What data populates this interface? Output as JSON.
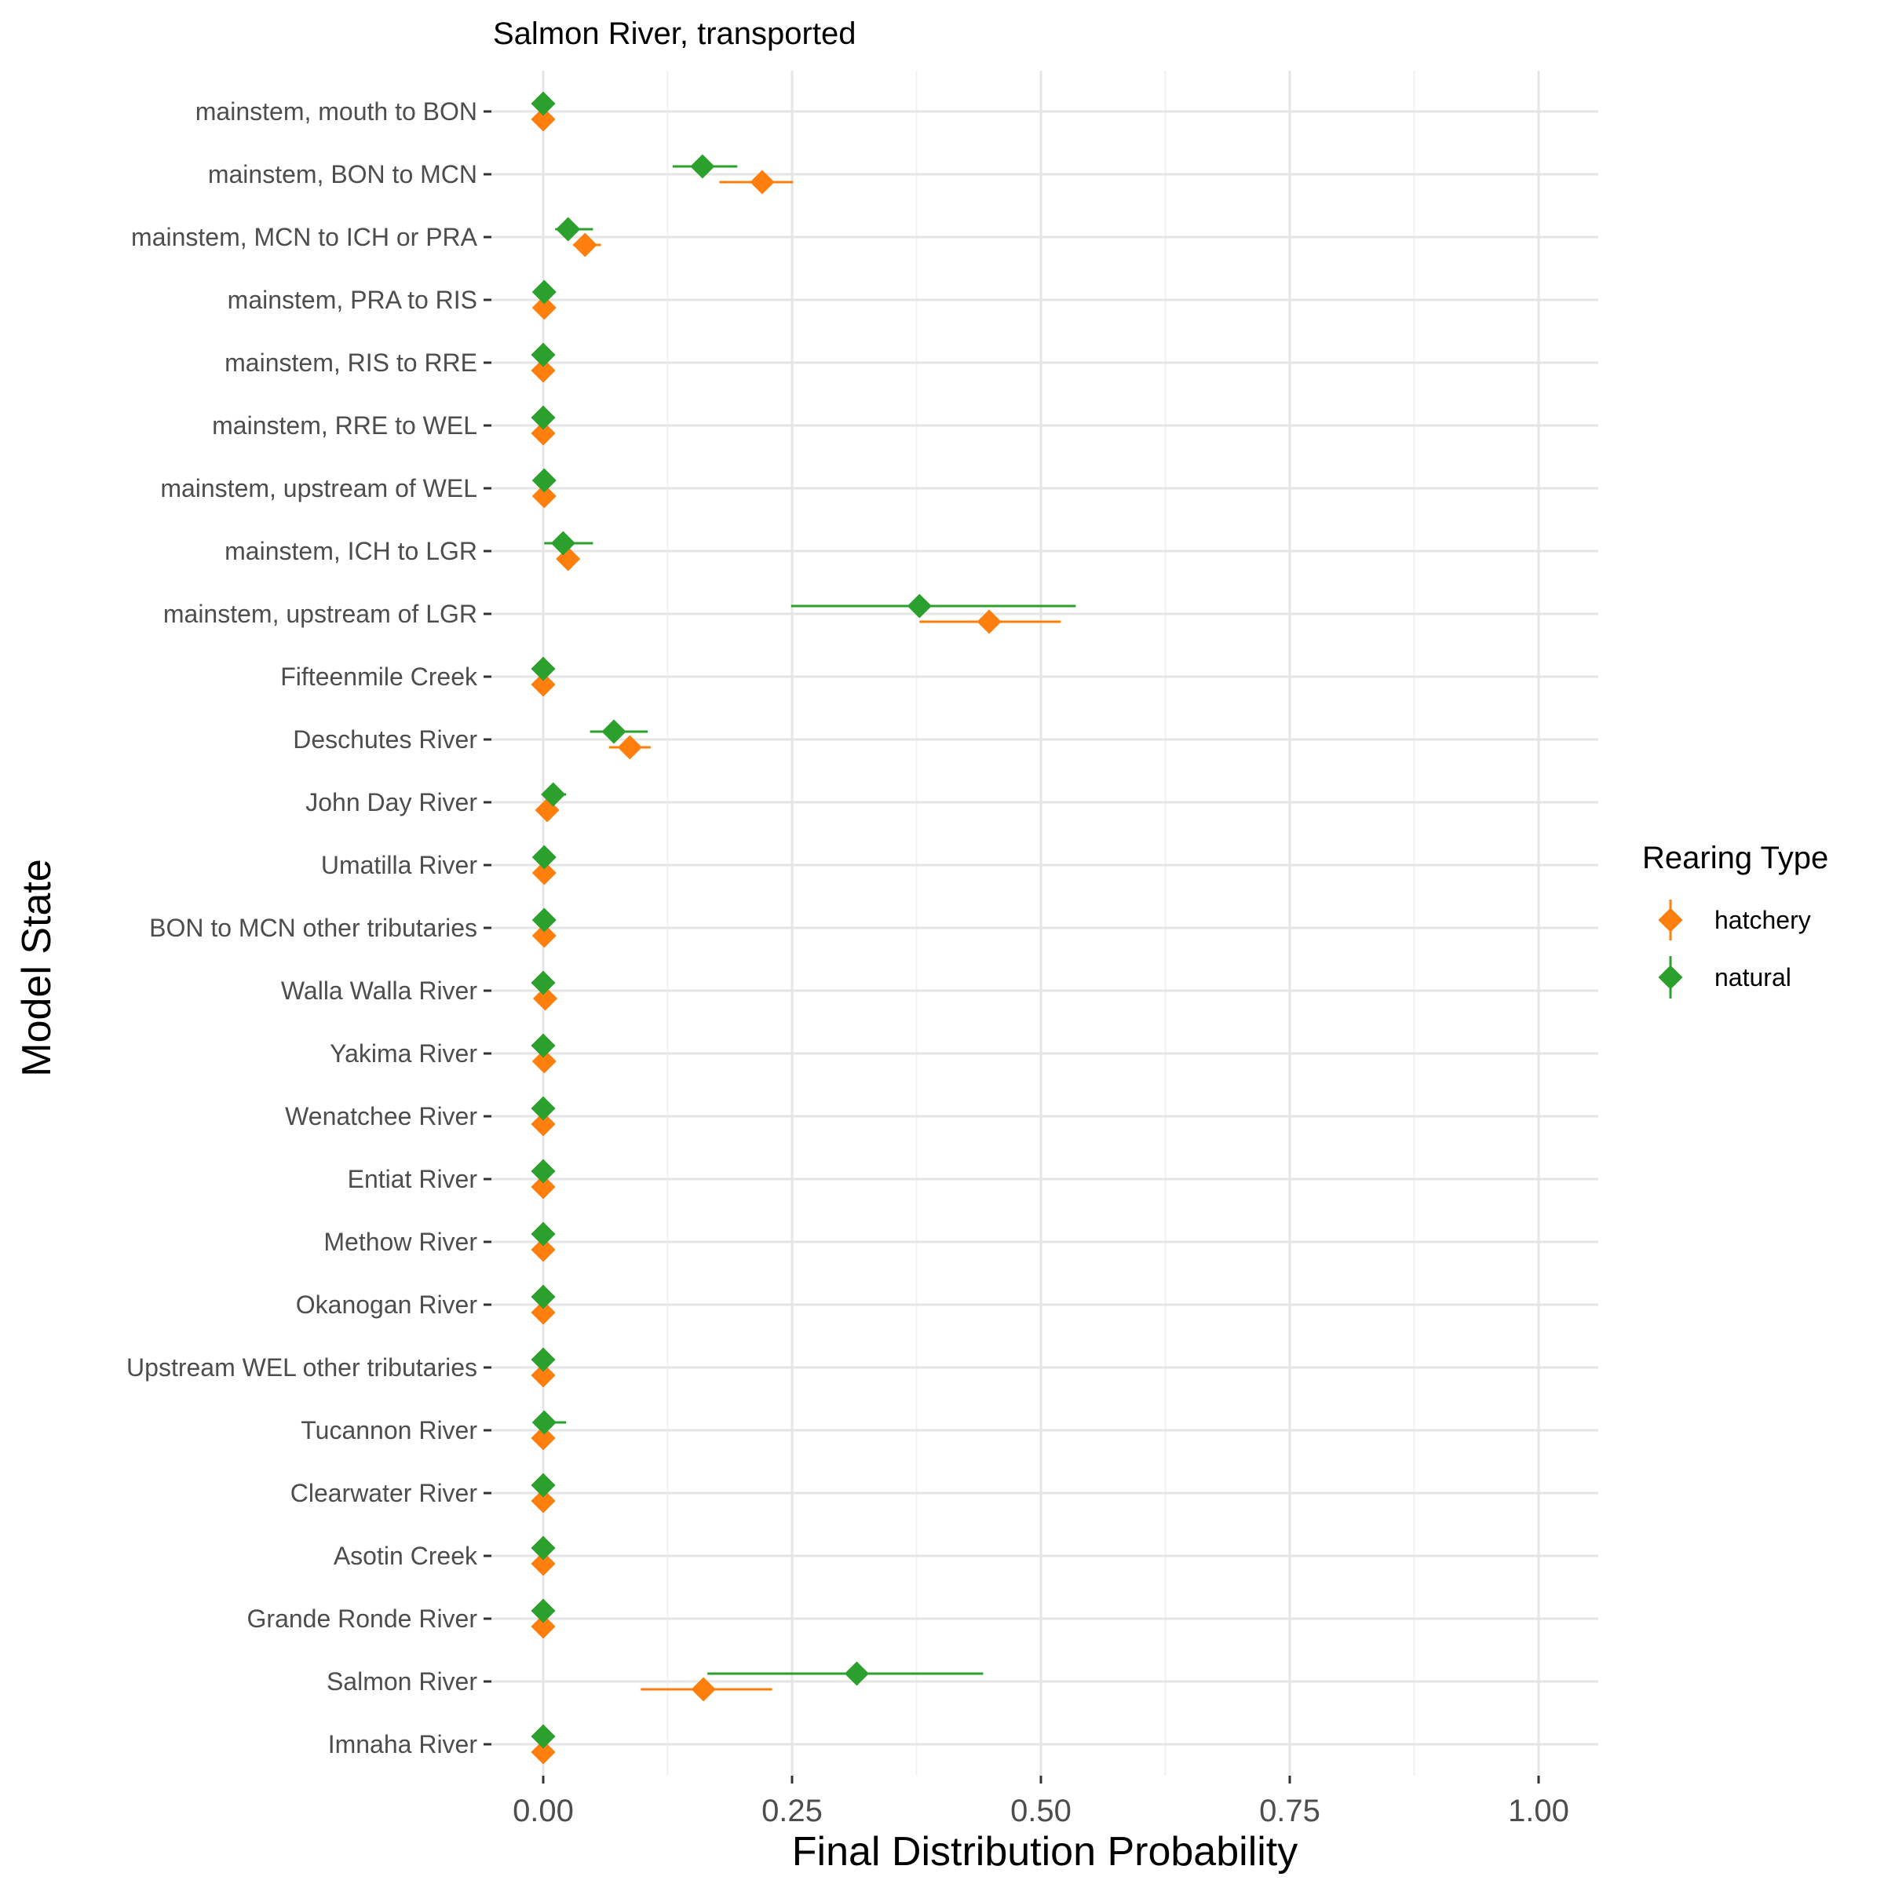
{
  "chart_data": {
    "type": "scatter",
    "title": "Salmon River, transported",
    "xlabel": "Final Distribution Probability",
    "ylabel": "Model State",
    "xlim": [
      -0.05,
      1.05
    ],
    "x_ticks": [
      0.0,
      0.25,
      0.5,
      0.75,
      1.0
    ],
    "x_tick_labels": [
      "0.00",
      "0.25",
      "0.50",
      "0.75",
      "1.00"
    ],
    "grid": true,
    "legend": {
      "title": "Rearing Type",
      "position": "right"
    },
    "categories": [
      "mainstem, mouth to BON",
      "mainstem, BON to MCN",
      "mainstem, MCN to ICH or PRA",
      "mainstem, PRA to RIS",
      "mainstem, RIS to RRE",
      "mainstem, RRE to WEL",
      "mainstem, upstream of WEL",
      "mainstem, ICH to LGR",
      "mainstem, upstream of LGR",
      "Fifteenmile Creek",
      "Deschutes River",
      "John Day River",
      "Umatilla River",
      "BON to MCN other tributaries",
      "Walla Walla River",
      "Yakima River",
      "Wenatchee River",
      "Entiat River",
      "Methow River",
      "Okanogan River",
      "Upstream WEL other tributaries",
      "Tucannon River",
      "Clearwater River",
      "Asotin Creek",
      "Grande Ronde River",
      "Salmon River",
      "Imnaha River"
    ],
    "series": [
      {
        "name": "hatchery",
        "color": "#ff7f0e",
        "values": [
          0.0,
          0.22,
          0.042,
          0.001,
          0.0,
          0.0,
          0.001,
          0.025,
          0.448,
          0.0,
          0.087,
          0.004,
          0.001,
          0.001,
          0.002,
          0.001,
          0.0,
          0.0,
          0.0,
          0.0,
          0.0,
          0.0,
          0.0,
          0.0,
          0.0,
          0.161,
          0.0
        ],
        "lower": [
          0.0,
          0.177,
          0.03,
          0.0,
          0.0,
          0.0,
          0.0,
          0.018,
          0.378,
          0.0,
          0.066,
          0.001,
          0.0,
          0.0,
          0.0,
          0.0,
          0.0,
          0.0,
          0.0,
          0.0,
          0.0,
          0.0,
          0.0,
          0.0,
          0.0,
          0.098,
          0.0
        ],
        "upper": [
          0.001,
          0.251,
          0.058,
          0.002,
          0.001,
          0.001,
          0.002,
          0.033,
          0.52,
          0.001,
          0.108,
          0.007,
          0.002,
          0.003,
          0.004,
          0.002,
          0.001,
          0.001,
          0.001,
          0.001,
          0.001,
          0.001,
          0.001,
          0.001,
          0.001,
          0.23,
          0.001
        ]
      },
      {
        "name": "natural",
        "color": "#2ca02c",
        "values": [
          0.0,
          0.16,
          0.025,
          0.001,
          0.0,
          0.0,
          0.001,
          0.02,
          0.378,
          0.0,
          0.071,
          0.01,
          0.001,
          0.001,
          0.0,
          0.0,
          0.0,
          0.0,
          0.0,
          0.0,
          0.0,
          0.001,
          0.0,
          0.0,
          0.0,
          0.315,
          0.0
        ],
        "lower": [
          0.0,
          0.13,
          0.012,
          0.0,
          0.0,
          0.0,
          0.0,
          0.001,
          0.249,
          0.0,
          0.047,
          0.002,
          0.0,
          0.0,
          0.0,
          0.0,
          0.0,
          0.0,
          0.0,
          0.0,
          0.0,
          0.0,
          0.0,
          0.0,
          0.0,
          0.165,
          0.0
        ],
        "upper": [
          0.001,
          0.195,
          0.05,
          0.002,
          0.001,
          0.001,
          0.002,
          0.05,
          0.535,
          0.001,
          0.105,
          0.023,
          0.002,
          0.002,
          0.001,
          0.001,
          0.001,
          0.001,
          0.001,
          0.001,
          0.001,
          0.023,
          0.001,
          0.001,
          0.001,
          0.442,
          0.001
        ]
      }
    ]
  }
}
